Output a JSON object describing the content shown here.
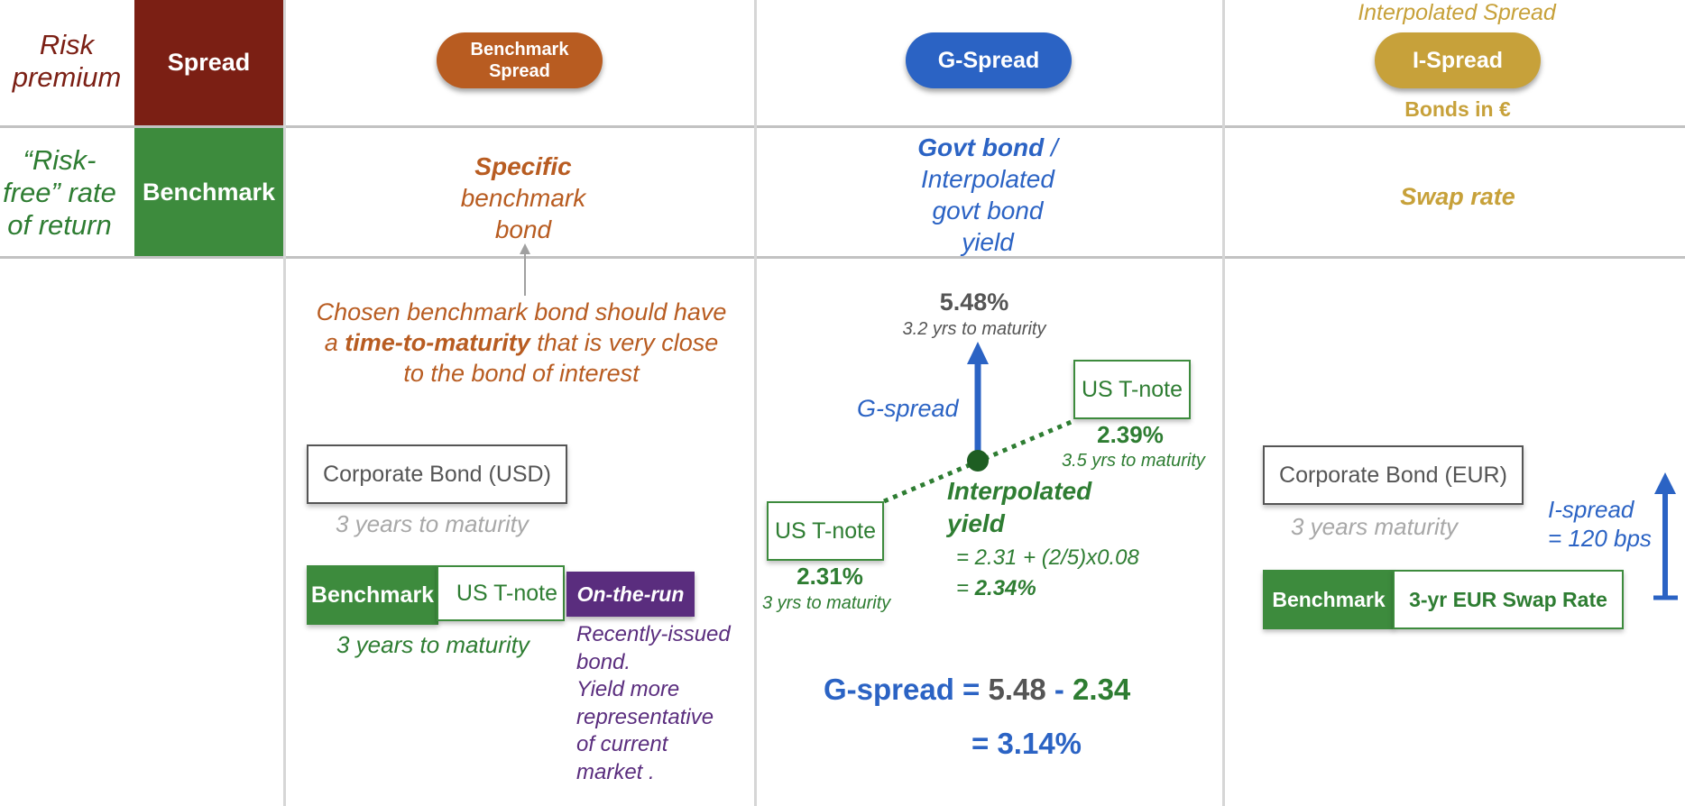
{
  "colors": {
    "spread": "#7b1f14",
    "benchmark_green": "#3d8b3d",
    "orange": "#b85c21",
    "blue": "#2b63c4",
    "gold": "#c7a13a",
    "purple": "#5a2d7e",
    "gray_text": "#555555"
  },
  "row_labels": {
    "risk_premium": "Risk premium",
    "risk_free": "“Risk-free” rate of return"
  },
  "blocks": {
    "spread": "Spread",
    "benchmark": "Benchmark"
  },
  "columns": {
    "benchmark_spread": {
      "pill": "Benchmark Spread",
      "specific": "Specific",
      "specific_rest": "benchmark bond",
      "note_part1": "Chosen benchmark bond should have a ",
      "note_bold": "time-to-maturity",
      "note_part2": " that is very close to the bond of interest",
      "corp_bond": "Corporate Bond (USD)",
      "corp_maturity": "3 years to maturity",
      "bench_label": "Benchmark",
      "bench_value": "US T-note",
      "bench_maturity": "3 years to maturity",
      "otr_label": "On-the-run",
      "otr_desc": [
        "Recently-issued",
        "bond.",
        "Yield more",
        "representative",
        "of current",
        "market ."
      ]
    },
    "g_spread": {
      "pill": "G-Spread",
      "def_bold": "Govt bond",
      "def_slash": " /",
      "def_rest": [
        "Interpolated",
        "govt bond",
        "yield"
      ],
      "top_yield": "5.48%",
      "top_maturity": "3.2 yrs to maturity",
      "arrow_label": "G-spread",
      "right_note": "US T-note",
      "right_yield": "2.39%",
      "right_maturity": "3.5 yrs to maturity",
      "left_note": "US T-note",
      "left_yield": "2.31%",
      "left_maturity": "3 yrs to maturity",
      "interp_title": [
        "Interpolated",
        "yield"
      ],
      "interp_formula": "= 2.31 + (2/5)x0.08",
      "interp_result_eq": "= ",
      "interp_result": "2.34%",
      "calc_label": "G-spread",
      "calc_eq": " = ",
      "calc_a": "5.48",
      "calc_minus": " - ",
      "calc_b": "2.34",
      "calc_result": "= 3.14%"
    },
    "i_spread": {
      "subtitle": "Interpolated Spread",
      "pill": "I-Spread",
      "bonds_note": "Bonds in €",
      "definition": "Swap rate",
      "corp_bond": "Corporate Bond (EUR)",
      "corp_maturity": "3 years maturity",
      "bench_label": "Benchmark",
      "bench_value": "3-yr EUR Swap Rate",
      "arrow_label": [
        "I-spread",
        "= 120 bps"
      ]
    }
  }
}
